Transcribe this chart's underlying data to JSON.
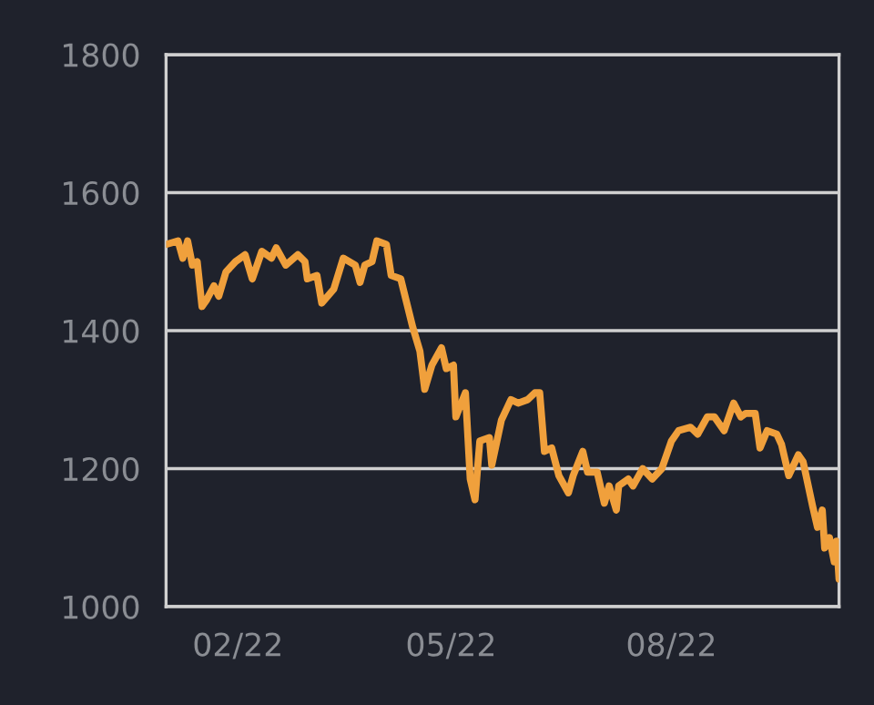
{
  "chart_data": {
    "type": "line",
    "x": [
      "2022-01-02",
      "2022-01-07",
      "2022-01-09",
      "2022-01-11",
      "2022-01-13",
      "2022-01-15",
      "2022-01-17",
      "2022-01-19",
      "2022-01-22",
      "2022-01-24",
      "2022-01-27",
      "2022-01-31",
      "2022-02-04",
      "2022-02-07",
      "2022-02-11",
      "2022-02-15",
      "2022-02-17",
      "2022-02-21",
      "2022-02-26",
      "2022-03-01",
      "2022-03-02",
      "2022-03-06",
      "2022-03-08",
      "2022-03-13",
      "2022-03-17",
      "2022-03-22",
      "2022-03-24",
      "2022-03-26",
      "2022-03-29",
      "2022-03-31",
      "2022-04-04",
      "2022-04-06",
      "2022-04-10",
      "2022-04-15",
      "2022-04-18",
      "2022-04-20",
      "2022-04-23",
      "2022-04-27",
      "2022-04-29",
      "2022-05-02",
      "2022-05-03",
      "2022-05-07",
      "2022-05-09",
      "2022-05-11",
      "2022-05-13",
      "2022-05-17",
      "2022-05-18",
      "2022-05-22",
      "2022-05-26",
      "2022-05-29",
      "2022-06-02",
      "2022-06-05",
      "2022-06-07",
      "2022-06-09",
      "2022-06-12",
      "2022-06-15",
      "2022-06-19",
      "2022-06-21",
      "2022-06-25",
      "2022-06-27",
      "2022-07-01",
      "2022-07-04",
      "2022-07-06",
      "2022-07-09",
      "2022-07-10",
      "2022-07-14",
      "2022-07-16",
      "2022-07-20",
      "2022-07-24",
      "2022-07-28",
      "2022-08-01",
      "2022-08-04",
      "2022-08-09",
      "2022-08-12",
      "2022-08-16",
      "2022-08-19",
      "2022-08-23",
      "2022-08-27",
      "2022-08-30",
      "2022-09-01",
      "2022-09-05",
      "2022-09-07",
      "2022-09-10",
      "2022-09-14",
      "2022-09-16",
      "2022-09-19",
      "2022-09-23",
      "2022-09-25",
      "2022-09-29",
      "2022-10-01",
      "2022-10-03",
      "2022-10-04",
      "2022-10-06",
      "2022-10-08",
      "2022-10-09",
      "2022-10-10"
    ],
    "series": [
      {
        "color": "#f0a03c",
        "values": [
          1525,
          1530,
          1505,
          1530,
          1495,
          1500,
          1435,
          1445,
          1465,
          1450,
          1485,
          1500,
          1510,
          1475,
          1515,
          1505,
          1520,
          1495,
          1510,
          1500,
          1475,
          1480,
          1440,
          1460,
          1505,
          1495,
          1470,
          1495,
          1500,
          1530,
          1525,
          1480,
          1475,
          1405,
          1370,
          1315,
          1350,
          1375,
          1345,
          1350,
          1275,
          1310,
          1185,
          1155,
          1240,
          1245,
          1205,
          1270,
          1300,
          1295,
          1300,
          1310,
          1310,
          1225,
          1230,
          1190,
          1165,
          1190,
          1225,
          1195,
          1195,
          1150,
          1175,
          1140,
          1175,
          1185,
          1175,
          1200,
          1185,
          1200,
          1240,
          1255,
          1260,
          1250,
          1275,
          1275,
          1255,
          1295,
          1275,
          1280,
          1280,
          1230,
          1255,
          1250,
          1235,
          1190,
          1220,
          1210,
          1145,
          1115,
          1140,
          1085,
          1100,
          1065,
          1095,
          1040
        ]
      }
    ],
    "xlim": [
      "2022-01-02",
      "2022-10-10"
    ],
    "xticks": [
      {
        "value": "2022-02-01",
        "label": "02/22"
      },
      {
        "value": "2022-05-01",
        "label": "05/22"
      },
      {
        "value": "2022-08-01",
        "label": "08/22"
      }
    ],
    "ylim": [
      1000,
      1800
    ],
    "yticks": [
      1000,
      1200,
      1400,
      1600,
      1800
    ],
    "grid": "y",
    "line_style": "solid",
    "marker": "none"
  }
}
